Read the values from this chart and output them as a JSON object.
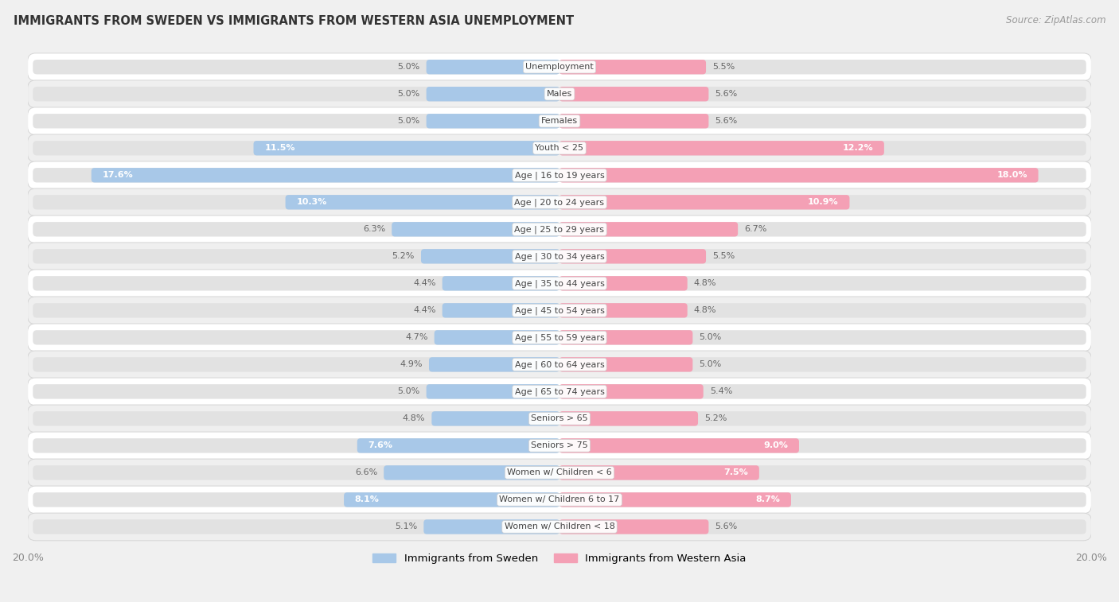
{
  "title": "IMMIGRANTS FROM SWEDEN VS IMMIGRANTS FROM WESTERN ASIA UNEMPLOYMENT",
  "source": "Source: ZipAtlas.com",
  "categories": [
    "Unemployment",
    "Males",
    "Females",
    "Youth < 25",
    "Age | 16 to 19 years",
    "Age | 20 to 24 years",
    "Age | 25 to 29 years",
    "Age | 30 to 34 years",
    "Age | 35 to 44 years",
    "Age | 45 to 54 years",
    "Age | 55 to 59 years",
    "Age | 60 to 64 years",
    "Age | 65 to 74 years",
    "Seniors > 65",
    "Seniors > 75",
    "Women w/ Children < 6",
    "Women w/ Children 6 to 17",
    "Women w/ Children < 18"
  ],
  "sweden_values": [
    5.0,
    5.0,
    5.0,
    11.5,
    17.6,
    10.3,
    6.3,
    5.2,
    4.4,
    4.4,
    4.7,
    4.9,
    5.0,
    4.8,
    7.6,
    6.6,
    8.1,
    5.1
  ],
  "western_asia_values": [
    5.5,
    5.6,
    5.6,
    12.2,
    18.0,
    10.9,
    6.7,
    5.5,
    4.8,
    4.8,
    5.0,
    5.0,
    5.4,
    5.2,
    9.0,
    7.5,
    8.7,
    5.6
  ],
  "sweden_color": "#a8c8e8",
  "western_asia_color": "#f4a0b5",
  "sweden_label": "Immigrants from Sweden",
  "western_asia_label": "Immigrants from Western Asia",
  "x_max": 20.0,
  "fig_bg": "#f0f0f0",
  "row_bg_colors": [
    "#ffffff",
    "#efefef"
  ],
  "bar_track_color": "#e2e2e2",
  "row_border_color": "#d5d5d5"
}
